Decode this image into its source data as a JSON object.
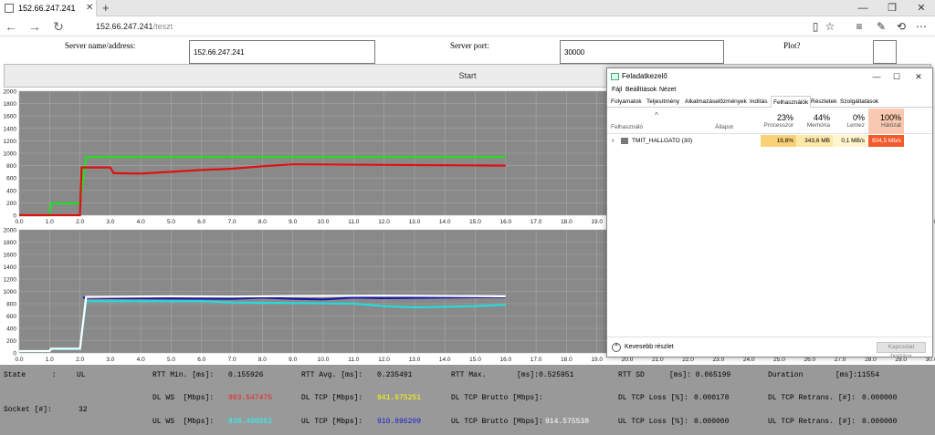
{
  "browser": {
    "tab_title": "152.66.247.241",
    "url_host": "152.66.247.241",
    "url_path": "/teszt"
  },
  "form": {
    "server_label": "Server name/address:",
    "server_value": "152.66.247.241",
    "port_label": "Server port:",
    "port_value": "30000",
    "plot_label": "Plot?",
    "start_label": "Start"
  },
  "chart_data": [
    {
      "type": "line",
      "title": "",
      "xlim": [
        0,
        30
      ],
      "ylim": [
        0,
        2000
      ],
      "x_ticks": [
        "0.0",
        "1.0",
        "2.0",
        "3.0",
        "4.0",
        "5.0",
        "6.0",
        "7.0",
        "8.0",
        "9.0",
        "10.0",
        "11.0",
        "12.0",
        "13.0",
        "14.0",
        "15.0",
        "16.0",
        "17.0",
        "18.0",
        "19.0",
        "20.0",
        "21.0",
        "22.0",
        "23.0",
        "24.0",
        "25.0",
        "26.0",
        "27.0",
        "28.0",
        "29.0",
        "30.0"
      ],
      "y_ticks": [
        "0",
        "200",
        "400",
        "600",
        "800",
        "1000",
        "1200",
        "1400",
        "1600",
        "1800",
        "2000"
      ],
      "grid": true,
      "colors": {
        "green": "#22dd22",
        "red": "#dd1111",
        "background": "#898989"
      },
      "series": [
        {
          "color": "#22dd22",
          "x": [
            0,
            1,
            1.05,
            2,
            2.2,
            16
          ],
          "y": [
            0,
            0,
            190,
            190,
            941,
            941
          ]
        },
        {
          "color": "#dd1111",
          "x": [
            0,
            2,
            2.05,
            3,
            3.1,
            4,
            5,
            6,
            7,
            8,
            9,
            16
          ],
          "y": [
            0,
            0,
            770,
            770,
            680,
            670,
            700,
            730,
            750,
            790,
            820,
            800
          ]
        }
      ]
    },
    {
      "type": "line",
      "title": "",
      "xlim": [
        0,
        30
      ],
      "ylim": [
        0,
        2000
      ],
      "x_ticks": [
        "0.0",
        "1.0",
        "2.0",
        "3.0",
        "4.0",
        "5.0",
        "6.0",
        "7.0",
        "8.0",
        "9.0",
        "10.0",
        "11.0",
        "12.0",
        "13.0",
        "14.0",
        "15.0",
        "16.0",
        "17.0",
        "18.0",
        "19.0",
        "20.0",
        "21.0",
        "22.0",
        "23.0",
        "24.0",
        "25.0",
        "26.0",
        "27.0",
        "28.0",
        "29.0",
        "30.0"
      ],
      "y_ticks": [
        "0",
        "200",
        "400",
        "600",
        "800",
        "1000",
        "1200",
        "1400",
        "1600",
        "1800",
        "2000"
      ],
      "grid": true,
      "colors": {
        "cyan": "#22dddd",
        "blue": "#1a1aa8",
        "white": "#ffffff",
        "background": "#898989"
      },
      "series": [
        {
          "color": "#1a1aa8",
          "x": [
            2.1,
            3,
            7,
            8,
            9,
            10,
            11,
            12,
            16
          ],
          "y": [
            900,
            890,
            880,
            900,
            880,
            870,
            900,
            890,
            910
          ]
        },
        {
          "color": "#22dddd",
          "x": [
            0,
            1,
            1.05,
            2,
            2.2,
            6,
            7,
            9,
            11,
            12,
            13,
            15,
            16
          ],
          "y": [
            30,
            30,
            60,
            60,
            840,
            840,
            820,
            810,
            800,
            760,
            740,
            760,
            780
          ]
        },
        {
          "color": "#ffffff",
          "x": [
            0,
            1,
            1.05,
            2,
            2.2,
            5,
            7,
            9,
            12,
            16
          ],
          "y": [
            30,
            30,
            70,
            70,
            910,
            920,
            915,
            925,
            930,
            920
          ]
        }
      ]
    }
  ],
  "stats": {
    "state_label": "State      :",
    "state_value": "UL",
    "rtt_min_label": "RTT Min. [ms]:",
    "rtt_min_value": "0.155926",
    "rtt_avg_label": "RTT Avg. [ms]:",
    "rtt_avg_value": "0.235491",
    "rtt_max_label": "RTT Max.",
    "rtt_max_value": "[ms]:0.525951",
    "rtt_sd_label": "RTT SD",
    "rtt_sd_value": "[ms]: 0.065199",
    "duration_label": "Duration",
    "duration_value": "[ms]:11554",
    "dl_ws_label": "DL WS  [Mbps]:",
    "dl_ws_value": "903.547475",
    "dl_tcp_label": "DL TCP [Mbps]:",
    "dl_tcp_value": "941.675251",
    "dl_brutto_label": "DL TCP Brutto [Mbps]:",
    "dl_loss_label": "DL TCP Loss [%]:",
    "dl_loss_value": "0.000178",
    "dl_retrans_label": "DL TCP Retrans. [#]:",
    "dl_retrans_value": "0.000000",
    "socket_label": "Socket [#]:",
    "socket_value": "32",
    "ul_ws_label": "UL WS  [Mbps]:",
    "ul_ws_value": "838.490952",
    "ul_tcp_label": "UL TCP [Mbps]:",
    "ul_tcp_value": "910.896209",
    "ul_brutto_label": "UL TCP Brutto [Mbps]:",
    "ul_brutto_value": "914.575538",
    "ul_loss_label": "UL TCP Loss [%]:",
    "ul_loss_value": "0.000000",
    "ul_retrans_label": "UL TCP Retrans. [#]:",
    "ul_retrans_value": "0.000000",
    "colors": {
      "red": "#ee2222",
      "yellow": "#ffff00",
      "green": "#22ee22",
      "cyan": "#22ffff",
      "blue": "#1a1ad0",
      "white": "#ffffff"
    }
  },
  "task_manager": {
    "title": "Feladatkezelő",
    "menu": [
      "Fájl",
      "Beállítások",
      "Nézet"
    ],
    "tabs": [
      "Folyamatok",
      "Teljesítmény",
      "Alkalmazáselőzmények",
      "Indítás",
      "Felhasználók",
      "Részletek",
      "Szolgáltatások"
    ],
    "selected_tab": "Felhasználók",
    "col_user": "Felhasználó",
    "col_status": "Állapot",
    "cpu_pct": "23%",
    "cpu_label": "Processzor",
    "mem_pct": "44%",
    "mem_label": "Memória",
    "disk_pct": "0%",
    "disk_label": "Lemez",
    "net_pct": "100%",
    "net_label": "Hálózat",
    "row": {
      "user": "TMIT_HALLGATO (30)",
      "cpu": "19,8%",
      "mem": "343,6 MB",
      "disk": "0,1 MB/s",
      "net": "904,5 Mb/s"
    },
    "fewer_details": "Kevesebb részlet",
    "disconnect": "Kapcsolat bontása"
  }
}
